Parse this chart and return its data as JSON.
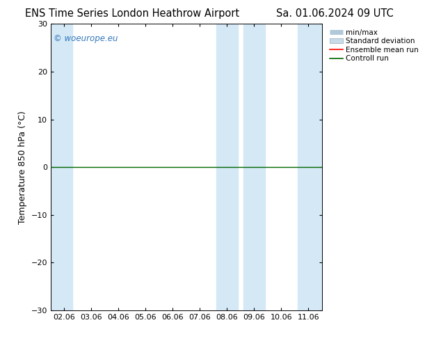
{
  "title_left": "ENS Time Series London Heathrow Airport",
  "title_right": "Sa. 01.06.2024 09 UTC",
  "ylabel": "Temperature 850 hPa (°C)",
  "watermark": "© woeurope.eu",
  "ylim": [
    -30,
    30
  ],
  "yticks": [
    -30,
    -20,
    -10,
    0,
    10,
    20,
    30
  ],
  "x_labels": [
    "02.06",
    "03.06",
    "04.06",
    "05.06",
    "06.06",
    "07.06",
    "08.06",
    "09.06",
    "10.06",
    "11.06"
  ],
  "x_positions": [
    0,
    1,
    2,
    3,
    4,
    5,
    6,
    7,
    8,
    9
  ],
  "xlim": [
    -0.5,
    9.5
  ],
  "background_color": "#ffffff",
  "plot_bg_color": "#ffffff",
  "band_color": "#d4e8f5",
  "line_zero_color": "#006600",
  "ensemble_mean_color": "#ff0000",
  "control_run_color": "#006600",
  "legend_minmax_color": "#b0c8d8",
  "legend_std_color": "#c8dce8",
  "title_fontsize": 10.5,
  "axis_fontsize": 9,
  "tick_fontsize": 8,
  "watermark_color": "#3377bb",
  "blue_bands": [
    [
      -0.5,
      0.3
    ],
    [
      5.6,
      6.4
    ],
    [
      6.6,
      7.4
    ],
    [
      8.6,
      9.5
    ]
  ]
}
